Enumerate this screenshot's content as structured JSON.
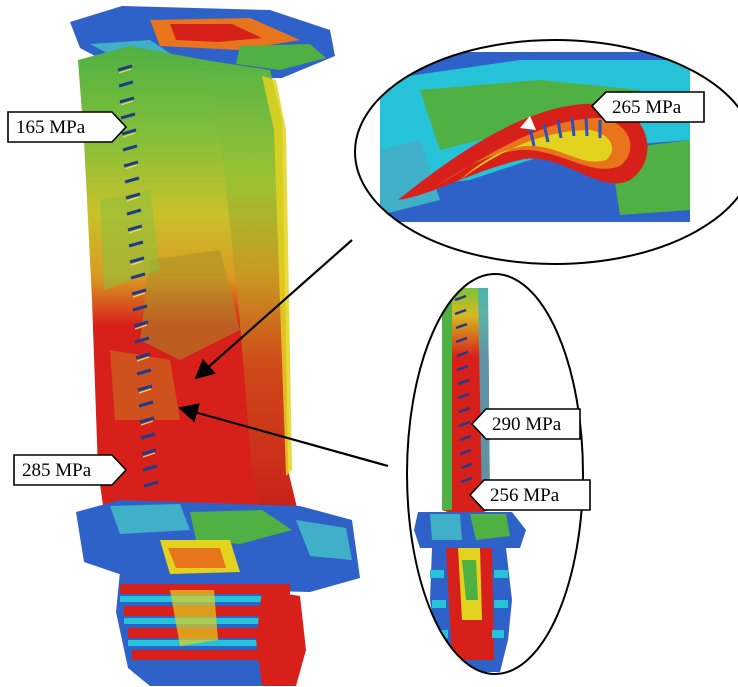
{
  "labels": {
    "blade_top": "165 MPa",
    "blade_root": "285 MPa",
    "section_zoom": "265 MPa",
    "root_zoom_upper": "290 MPa",
    "root_zoom_lower": "256 MPa"
  },
  "colors": {
    "red": "#d8201a",
    "orange": "#e8741c",
    "yellow": "#e3d21e",
    "green": "#4fb043",
    "cyan": "#26c2d8",
    "blue": "#2a4fc0",
    "callout_stroke": "#000000"
  }
}
